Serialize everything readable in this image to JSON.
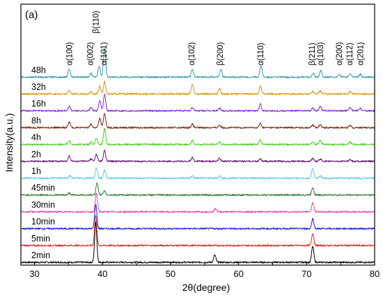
{
  "chart_data": {
    "type": "line",
    "panel_label": "(a)",
    "title": "",
    "xlabel": "2θ(degree)",
    "ylabel": "Intensity(a.u.)",
    "xlim": [
      28,
      80
    ],
    "x_ticks": [
      30,
      40,
      50,
      60,
      70,
      80
    ],
    "y_ticks_shown": false,
    "grid": false,
    "legend": "none",
    "peak_labels": [
      {
        "label": "α(100)",
        "x": 35.1
      },
      {
        "label": "α(002)",
        "x": 38.2
      },
      {
        "label": "β(110)",
        "x": 39.0
      },
      {
        "label": "α(101)",
        "x": 40.2
      },
      {
        "label": "α(102)",
        "x": 53.1
      },
      {
        "label": "β(200)",
        "x": 57.3
      },
      {
        "label": "α(110)",
        "x": 63.2
      },
      {
        "label": "β(211)",
        "x": 70.8
      },
      {
        "label": "α(103)",
        "x": 72.0
      },
      {
        "label": "α(200)",
        "x": 74.8
      },
      {
        "label": "α(112)",
        "x": 76.3
      },
      {
        "label": "α(201)",
        "x": 77.9
      }
    ],
    "series": [
      {
        "name": "2min",
        "color": "#000000",
        "peaks": [
          {
            "x": 39.0,
            "h": 5.2
          },
          {
            "x": 56.5,
            "h": 0.95
          },
          {
            "x": 70.9,
            "h": 2.1
          }
        ]
      },
      {
        "name": "5min",
        "color": "#d62828",
        "peaks": [
          {
            "x": 39.0,
            "h": 4.0
          },
          {
            "x": 70.9,
            "h": 1.6
          }
        ]
      },
      {
        "name": "10min",
        "color": "#1a1ad6",
        "peaks": [
          {
            "x": 39.0,
            "h": 3.2
          },
          {
            "x": 70.9,
            "h": 1.3
          }
        ]
      },
      {
        "name": "30min",
        "color": "#e04aa8",
        "peaks": [
          {
            "x": 39.1,
            "h": 2.4
          },
          {
            "x": 56.6,
            "h": 0.45
          },
          {
            "x": 70.9,
            "h": 1.2
          }
        ]
      },
      {
        "name": "45min",
        "color": "#2e7d32",
        "peaks": [
          {
            "x": 35.1,
            "h": 0.25
          },
          {
            "x": 39.2,
            "h": 1.6
          },
          {
            "x": 40.3,
            "h": 0.5
          },
          {
            "x": 70.9,
            "h": 1.0
          }
        ]
      },
      {
        "name": "1h",
        "color": "#5ec8e6",
        "peaks": [
          {
            "x": 35.2,
            "h": 0.35
          },
          {
            "x": 39.1,
            "h": 1.4
          },
          {
            "x": 40.3,
            "h": 1.1
          },
          {
            "x": 53.2,
            "h": 0.25
          },
          {
            "x": 57.2,
            "h": 0.3
          },
          {
            "x": 70.9,
            "h": 1.3
          },
          {
            "x": 72.0,
            "h": 0.3
          }
        ]
      },
      {
        "name": "2h",
        "color": "#6a1b7a",
        "peaks": [
          {
            "x": 35.1,
            "h": 0.7
          },
          {
            "x": 38.3,
            "h": 0.3
          },
          {
            "x": 39.1,
            "h": 0.9
          },
          {
            "x": 40.3,
            "h": 1.4
          },
          {
            "x": 53.2,
            "h": 0.5
          },
          {
            "x": 57.2,
            "h": 0.4
          },
          {
            "x": 63.2,
            "h": 0.35
          },
          {
            "x": 70.9,
            "h": 0.4
          },
          {
            "x": 72.0,
            "h": 0.3
          },
          {
            "x": 76.4,
            "h": 0.25
          }
        ]
      },
      {
        "name": "4h",
        "color": "#4ccf1e",
        "peaks": [
          {
            "x": 35.1,
            "h": 0.45
          },
          {
            "x": 38.3,
            "h": 0.3
          },
          {
            "x": 39.1,
            "h": 0.8
          },
          {
            "x": 40.3,
            "h": 2.0
          },
          {
            "x": 53.2,
            "h": 0.5
          },
          {
            "x": 57.2,
            "h": 0.35
          },
          {
            "x": 63.2,
            "h": 0.6
          },
          {
            "x": 70.9,
            "h": 0.35
          },
          {
            "x": 72.0,
            "h": 0.55
          },
          {
            "x": 76.4,
            "h": 0.3
          }
        ]
      },
      {
        "name": "8h",
        "color": "#7a2a10",
        "peaks": [
          {
            "x": 35.1,
            "h": 0.75
          },
          {
            "x": 38.3,
            "h": 0.45
          },
          {
            "x": 39.6,
            "h": 1.2
          },
          {
            "x": 40.3,
            "h": 1.9
          },
          {
            "x": 53.2,
            "h": 0.45
          },
          {
            "x": 57.2,
            "h": 0.35
          },
          {
            "x": 63.2,
            "h": 0.55
          },
          {
            "x": 70.9,
            "h": 0.35
          },
          {
            "x": 72.0,
            "h": 0.45
          },
          {
            "x": 76.4,
            "h": 0.35
          }
        ]
      },
      {
        "name": "16h",
        "color": "#8a2be2",
        "peaks": [
          {
            "x": 35.1,
            "h": 0.6
          },
          {
            "x": 38.3,
            "h": 0.4
          },
          {
            "x": 39.6,
            "h": 1.3
          },
          {
            "x": 40.3,
            "h": 2.2
          },
          {
            "x": 53.2,
            "h": 0.45
          },
          {
            "x": 57.2,
            "h": 0.35
          },
          {
            "x": 63.2,
            "h": 0.85
          },
          {
            "x": 70.9,
            "h": 0.4
          },
          {
            "x": 72.0,
            "h": 0.55
          },
          {
            "x": 76.4,
            "h": 0.45
          },
          {
            "x": 77.9,
            "h": 0.3
          }
        ]
      },
      {
        "name": "32h",
        "color": "#d4960a",
        "peaks": [
          {
            "x": 35.1,
            "h": 0.45
          },
          {
            "x": 38.3,
            "h": 0.25
          },
          {
            "x": 39.6,
            "h": 1.0
          },
          {
            "x": 40.3,
            "h": 1.6
          },
          {
            "x": 53.2,
            "h": 1.3
          },
          {
            "x": 57.2,
            "h": 0.7
          },
          {
            "x": 63.2,
            "h": 1.1
          },
          {
            "x": 70.9,
            "h": 0.35
          },
          {
            "x": 72.0,
            "h": 0.4
          },
          {
            "x": 76.4,
            "h": 0.35
          }
        ]
      },
      {
        "name": "48h",
        "color": "#3a9aa8",
        "peaks": [
          {
            "x": 35.1,
            "h": 1.05
          },
          {
            "x": 38.3,
            "h": 0.5
          },
          {
            "x": 39.5,
            "h": 1.4
          },
          {
            "x": 40.3,
            "h": 3.8
          },
          {
            "x": 53.2,
            "h": 1.0
          },
          {
            "x": 57.4,
            "h": 1.0
          },
          {
            "x": 63.3,
            "h": 1.5
          },
          {
            "x": 71.0,
            "h": 0.5
          },
          {
            "x": 72.1,
            "h": 0.85
          },
          {
            "x": 74.8,
            "h": 0.3
          },
          {
            "x": 76.4,
            "h": 0.5
          },
          {
            "x": 77.9,
            "h": 0.35
          }
        ]
      }
    ]
  }
}
